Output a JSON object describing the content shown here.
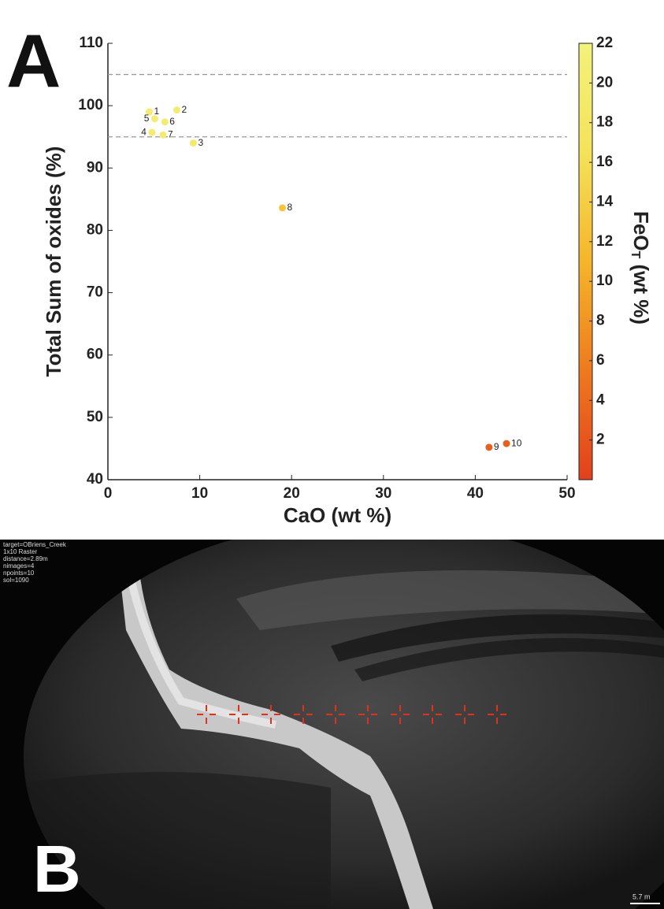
{
  "chart_data": {
    "type": "scatter",
    "x_label": "CaO (wt %)",
    "y_label": "Total Sum of oxides (%)",
    "colorbar_label": {
      "main": "FeO",
      "sub": "T",
      "rest": " (wt %)"
    },
    "x": [
      4.5,
      7.5,
      9.3,
      4.8,
      5.1,
      6.2,
      6.0,
      19.0,
      41.5,
      43.4
    ],
    "y": [
      99.0,
      99.3,
      94.0,
      95.7,
      97.9,
      97.4,
      95.3,
      83.6,
      45.2,
      45.8
    ],
    "c": [
      20,
      20,
      19,
      20,
      20,
      20,
      20,
      13,
      3,
      3
    ],
    "point_labels": [
      "1",
      "2",
      "3",
      "4",
      "5",
      "6",
      "7",
      "8",
      "9",
      "10"
    ],
    "xlim": [
      0,
      50
    ],
    "xticks": [
      0,
      10,
      20,
      30,
      40,
      50
    ],
    "ylim": [
      40,
      110
    ],
    "yticks": [
      40,
      50,
      60,
      70,
      80,
      90,
      100,
      110
    ],
    "clim": [
      0,
      22
    ],
    "cticks": [
      2,
      4,
      6,
      8,
      10,
      12,
      14,
      16,
      18,
      20,
      22
    ],
    "colormap": [
      "#e2401c",
      "#ee7a1e",
      "#f5b52a",
      "#f4e25a",
      "#f3f27a"
    ],
    "hlines": [
      105,
      95
    ],
    "hline_color": "#999"
  },
  "panel_labels": [
    "A",
    "B"
  ],
  "image_overlay": [
    "target=OBriens_Creek",
    "1x10 Raster",
    "distance=2.89m",
    "nimages=4",
    "npoints=10",
    "sol=1090"
  ],
  "scale_bar": "5.7 m"
}
